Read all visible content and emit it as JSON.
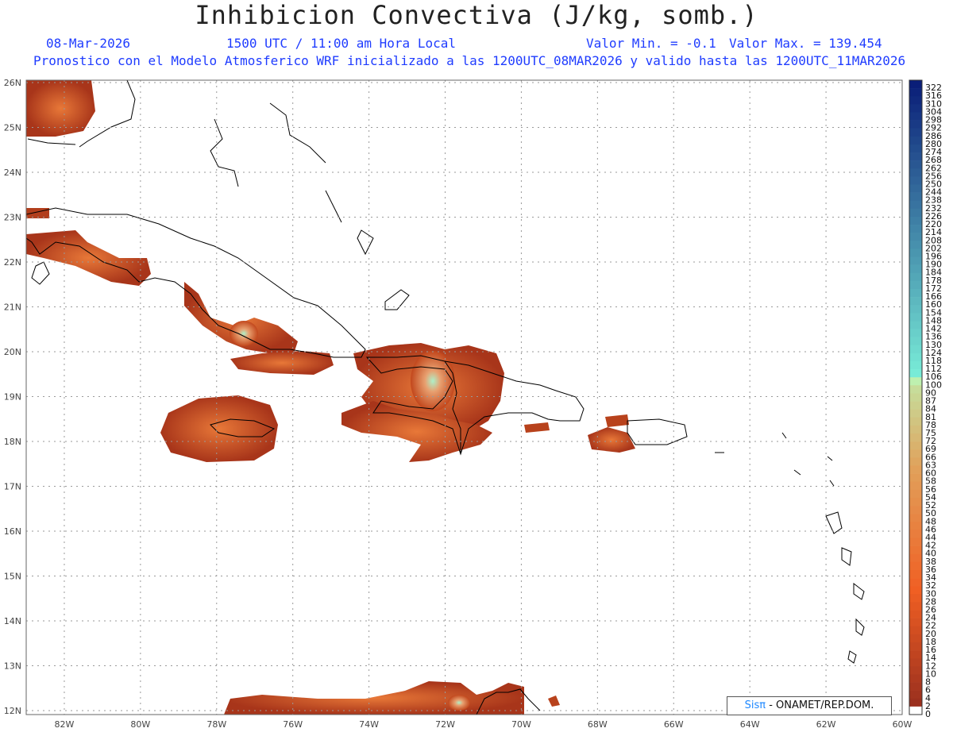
{
  "header": {
    "title": "Inhibicion Convectiva (J/kg, somb.)",
    "date": "08-Mar-2026",
    "time": "1500 UTC / 11:00 am Hora Local",
    "min_label": "Valor Min. = -0.1",
    "max_label": "Valor Max. = 139.454",
    "subtitle": "Pronostico con el Modelo Atmosferico WRF inicializado a las 1200UTC_08MAR2026 y valido hasta las  1200UTC_11MAR2026"
  },
  "map": {
    "lat_labels": [
      "26N",
      "25N",
      "24N",
      "23N",
      "22N",
      "21N",
      "20N",
      "19N",
      "18N",
      "17N",
      "16N",
      "15N",
      "14N",
      "13N",
      "12N"
    ],
    "lon_labels": [
      "82W",
      "80W",
      "78W",
      "76W",
      "74W",
      "72W",
      "70W",
      "68W",
      "66W",
      "64W",
      "62W",
      "60W"
    ],
    "lat_range": [
      12,
      26
    ],
    "lon_range": [
      -83,
      -60
    ],
    "grid": true,
    "colors": {
      "low": "#a8351a",
      "mid": "#d85a20",
      "high": "#9be8c8",
      "coast": "#000000"
    }
  },
  "colorbar": {
    "levels": [
      "322",
      "316",
      "310",
      "304",
      "298",
      "292",
      "286",
      "280",
      "274",
      "268",
      "262",
      "256",
      "250",
      "244",
      "238",
      "232",
      "226",
      "220",
      "214",
      "208",
      "202",
      "196",
      "190",
      "184",
      "178",
      "172",
      "166",
      "160",
      "154",
      "148",
      "142",
      "136",
      "130",
      "124",
      "118",
      "112",
      "106",
      "100",
      "90",
      "87",
      "84",
      "81",
      "78",
      "75",
      "72",
      "69",
      "66",
      "63",
      "60",
      "58",
      "56",
      "54",
      "52",
      "50",
      "48",
      "46",
      "44",
      "42",
      "40",
      "38",
      "36",
      "34",
      "32",
      "30",
      "28",
      "26",
      "24",
      "22",
      "20",
      "18",
      "16",
      "14",
      "12",
      "10",
      "8",
      "6",
      "4",
      "2",
      "0"
    ]
  },
  "badge": {
    "logo": "Sisπ",
    "text": "- ONAMET/REP.DOM."
  }
}
